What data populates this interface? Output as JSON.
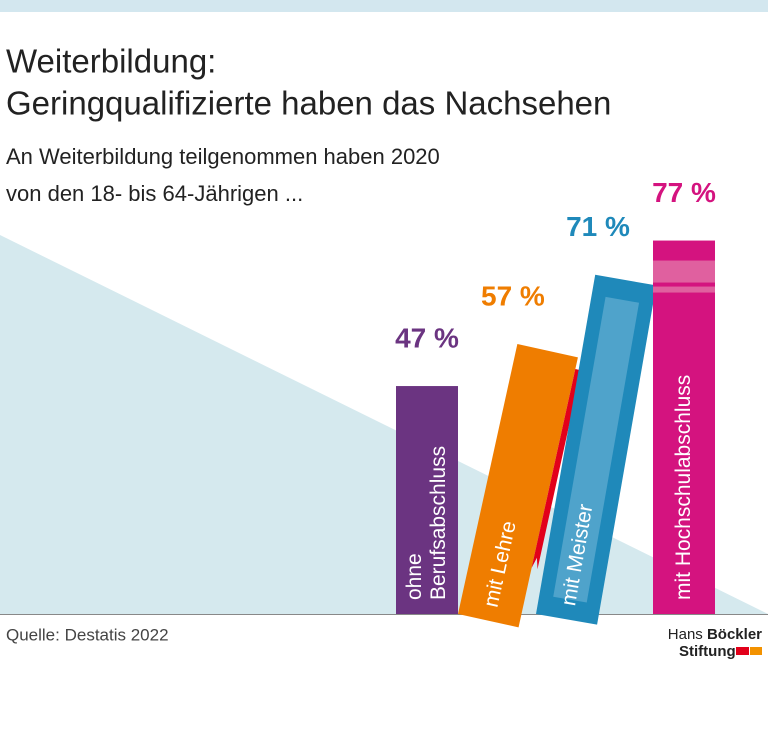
{
  "chart_data": {
    "type": "bar",
    "title": [
      "Weiterbildung:",
      "Geringqualifizierte haben das Nachsehen"
    ],
    "subtitle": [
      "An Weiterbildung teilgenommen haben 2020",
      "von den 18- bis 64-Jährigen ..."
    ],
    "categories": [
      "ohne\nBerufsabschluss",
      "mit Lehre",
      "mit Meister",
      "mit Hochschulabschluss"
    ],
    "values": [
      47,
      57,
      71,
      77
    ],
    "value_labels": [
      "47 %",
      "57 %",
      "71 %",
      "77 %"
    ],
    "colors": [
      "#6b3481",
      "#ef7d00",
      "#1f89ba",
      "#d4137f"
    ],
    "source": "Quelle: Destatis 2022",
    "logo": {
      "line1": [
        "Hans",
        "Böckler"
      ],
      "line2": "Stiftung"
    }
  }
}
